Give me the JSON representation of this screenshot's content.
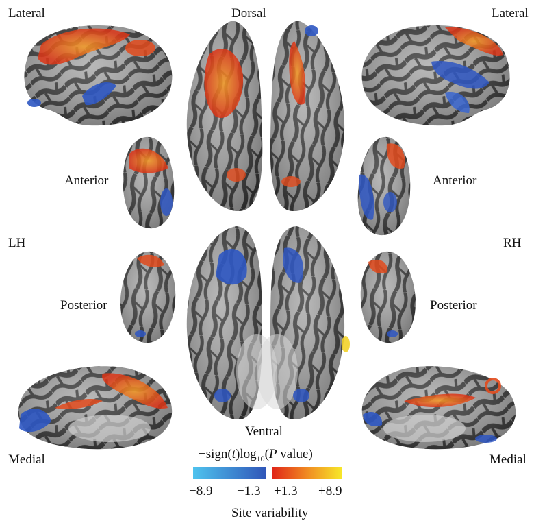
{
  "views": {
    "lateral_left": "Lateral",
    "lateral_right": "Lateral",
    "dorsal": "Dorsal",
    "ventral": "Ventral",
    "anterior_left": "Anterior",
    "anterior_right": "Anterior",
    "posterior_left": "Posterior",
    "posterior_right": "Posterior",
    "medial_left": "Medial",
    "medial_right": "Medial",
    "hemisphere_left": "LH",
    "hemisphere_right": "RH"
  },
  "legend": {
    "title_prefix": "−sign(",
    "title_t": "t",
    "title_mid": ")log",
    "title_sub": "10",
    "title_open": "(",
    "title_p": "P",
    "title_suffix": " value)",
    "neg_min": "−8.9",
    "neg_max": "−1.3",
    "pos_min": "+1.3",
    "pos_max": "+8.9",
    "neg_colors": [
      "#4fc3ee",
      "#2f55b8"
    ],
    "pos_colors": [
      "#e02418",
      "#f7e92a"
    ],
    "caption": "Site variability"
  },
  "colors": {
    "gyrus": "#a9a9a9",
    "sulcus": "#3c3c3c",
    "positive": "#e2441a",
    "negative": "#2e56c2"
  }
}
